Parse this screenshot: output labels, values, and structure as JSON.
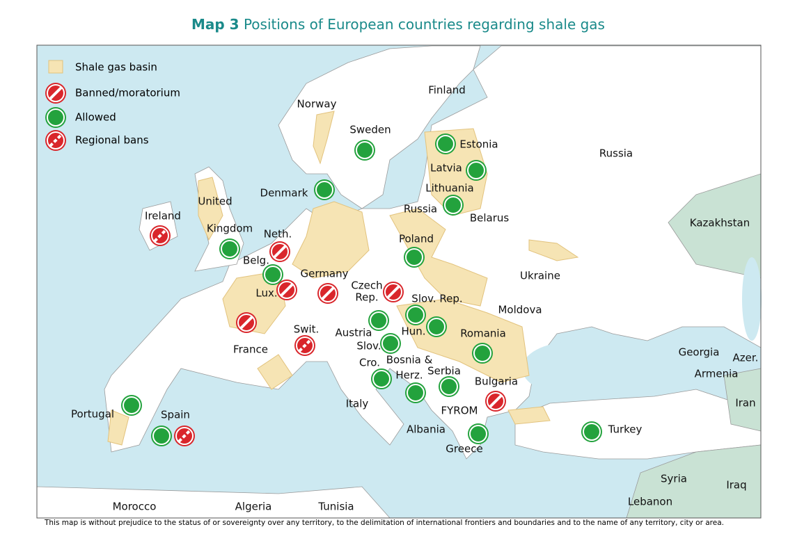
{
  "title": {
    "bold": "Map 3",
    "rest": "Positions of European countries regarding shale gas"
  },
  "legend": [
    "Shale gas basin",
    "Banned/moratorium",
    "Allowed",
    "Regional bans"
  ],
  "labels": [
    "Norway",
    "Sweden",
    "Finland",
    "Russia",
    "Estonia",
    "Latvia",
    "Lithuania",
    "Russia",
    "Belarus",
    "Denmark",
    "United",
    "Kingdom",
    "Ireland",
    "Neth.",
    "Belg.",
    "Lux.",
    "Germany",
    "Poland",
    "Czech",
    "Rep.",
    "Slov. Rep.",
    "Ukraine",
    "Moldova",
    "Austria",
    "Hun.",
    "Slov.",
    "Romania",
    "France",
    "Swit.",
    "Cro.",
    "Bosnia &",
    "Herz.",
    "Serbia",
    "Bulgaria",
    "Georgia",
    "Azer.",
    "Armenia",
    "Kazakhstan",
    "Iran",
    "Italy",
    "FYROM",
    "Portugal",
    "Spain",
    "Albania",
    "Turkey",
    "Greece",
    "Syria",
    "Iraq",
    "Lebanon",
    "Morocco",
    "Algeria",
    "Tunisia"
  ],
  "disclaimer": "This map is without prejudice to the status of or sovereignty over any territory, to the delimitation of international frontiers and boundaries and to the name of any territory, city or area."
}
